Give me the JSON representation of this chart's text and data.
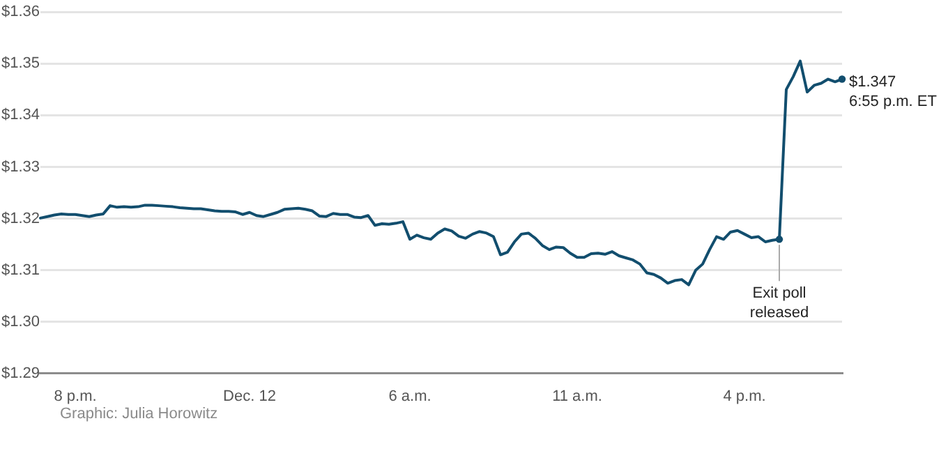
{
  "chart_data": {
    "type": "line",
    "categories": [
      null,
      null,
      null,
      null,
      null,
      "8 p.m.",
      null,
      null,
      null,
      null,
      null,
      null,
      null,
      null,
      null,
      null,
      null,
      null,
      null,
      null,
      null,
      null,
      null,
      null,
      null,
      null,
      null,
      null,
      null,
      null,
      "Dec. 12",
      null,
      null,
      null,
      null,
      null,
      null,
      null,
      null,
      null,
      null,
      null,
      null,
      null,
      null,
      null,
      null,
      null,
      null,
      null,
      null,
      null,
      null,
      "6 a.m.",
      null,
      null,
      null,
      null,
      null,
      null,
      null,
      null,
      null,
      null,
      null,
      null,
      null,
      null,
      null,
      null,
      null,
      null,
      null,
      null,
      null,
      null,
      null,
      "11 a.m.",
      null,
      null,
      null,
      null,
      null,
      null,
      null,
      null,
      null,
      null,
      null,
      null,
      null,
      null,
      null,
      null,
      null,
      null,
      null,
      null,
      null,
      null,
      null,
      "4 p.m.",
      null,
      null,
      null,
      null,
      null,
      null,
      null,
      null,
      null,
      null,
      null,
      null,
      null,
      null
    ],
    "values": [
      1.3201,
      1.3204,
      1.3207,
      1.3209,
      1.3208,
      1.3208,
      1.3206,
      1.3204,
      1.3207,
      1.3209,
      1.3225,
      1.3222,
      1.3223,
      1.3222,
      1.3223,
      1.3226,
      1.3226,
      1.3225,
      1.3224,
      1.3223,
      1.3221,
      1.322,
      1.3219,
      1.3219,
      1.3217,
      1.3215,
      1.3214,
      1.3214,
      1.3213,
      1.3208,
      1.3212,
      1.3206,
      1.3204,
      1.3208,
      1.3212,
      1.3218,
      1.3219,
      1.322,
      1.3218,
      1.3215,
      1.3205,
      1.3204,
      1.321,
      1.3208,
      1.3208,
      1.3203,
      1.3202,
      1.3206,
      1.3187,
      1.319,
      1.3189,
      1.3191,
      1.3194,
      1.316,
      1.3168,
      1.3163,
      1.316,
      1.3172,
      1.318,
      1.3176,
      1.3166,
      1.3162,
      1.317,
      1.3175,
      1.3172,
      1.3165,
      1.313,
      1.3135,
      1.3155,
      1.317,
      1.3172,
      1.3162,
      1.3148,
      1.314,
      1.3145,
      1.3144,
      1.3133,
      1.3125,
      1.3125,
      1.3132,
      1.3133,
      1.3131,
      1.3136,
      1.3128,
      1.3124,
      1.312,
      1.3112,
      1.3095,
      1.3092,
      1.3085,
      1.3075,
      1.308,
      1.3082,
      1.3072,
      1.31,
      1.3112,
      1.314,
      1.3165,
      1.316,
      1.3174,
      1.3177,
      1.317,
      1.3163,
      1.3165,
      1.3155,
      1.3158,
      1.316,
      1.345,
      1.3475,
      1.3505,
      1.3445,
      1.3458,
      1.3462,
      1.347,
      1.3465,
      1.347
    ],
    "color": "#124e6e",
    "ylim": [
      1.29,
      1.36
    ],
    "yticks": [
      {
        "value": 1.29,
        "label": "$1.29"
      },
      {
        "value": 1.3,
        "label": "$1.30"
      },
      {
        "value": 1.31,
        "label": "$1.31"
      },
      {
        "value": 1.32,
        "label": "$1.32"
      },
      {
        "value": 1.33,
        "label": "$1.33"
      },
      {
        "value": 1.34,
        "label": "$1.34"
      },
      {
        "value": 1.35,
        "label": "$1.35"
      },
      {
        "value": 1.36,
        "label": "$1.36"
      }
    ],
    "grid": "y",
    "value_labels": [
      null,
      null,
      null,
      null,
      null,
      null,
      null,
      null,
      null,
      null,
      null,
      null,
      null,
      null,
      null,
      null,
      null,
      null,
      null,
      null,
      null,
      null,
      null,
      null,
      null,
      null,
      null,
      null,
      null,
      null,
      null,
      null,
      null,
      null,
      null,
      null,
      null,
      null,
      null,
      null,
      null,
      null,
      null,
      null,
      null,
      null,
      null,
      null,
      null,
      null,
      null,
      null,
      null,
      null,
      null,
      null,
      null,
      null,
      null,
      null,
      null,
      null,
      null,
      null,
      null,
      null,
      null,
      null,
      null,
      null,
      null,
      null,
      null,
      null,
      null,
      null,
      null,
      null,
      null,
      null,
      null,
      null,
      null,
      null,
      null,
      null,
      null,
      null,
      null,
      null,
      null,
      null,
      null,
      null,
      null,
      null,
      null,
      null,
      null,
      null,
      null,
      null,
      null,
      null,
      null,
      null,
      null,
      null,
      null,
      null,
      null,
      null,
      null,
      null,
      null,
      "$1.347\n6:55 p.m. ET"
    ],
    "annotations": [
      {
        "text": "Exit poll released",
        "y": 1.316
      },
      "Graphic: Julia Horowitz"
    ]
  }
}
